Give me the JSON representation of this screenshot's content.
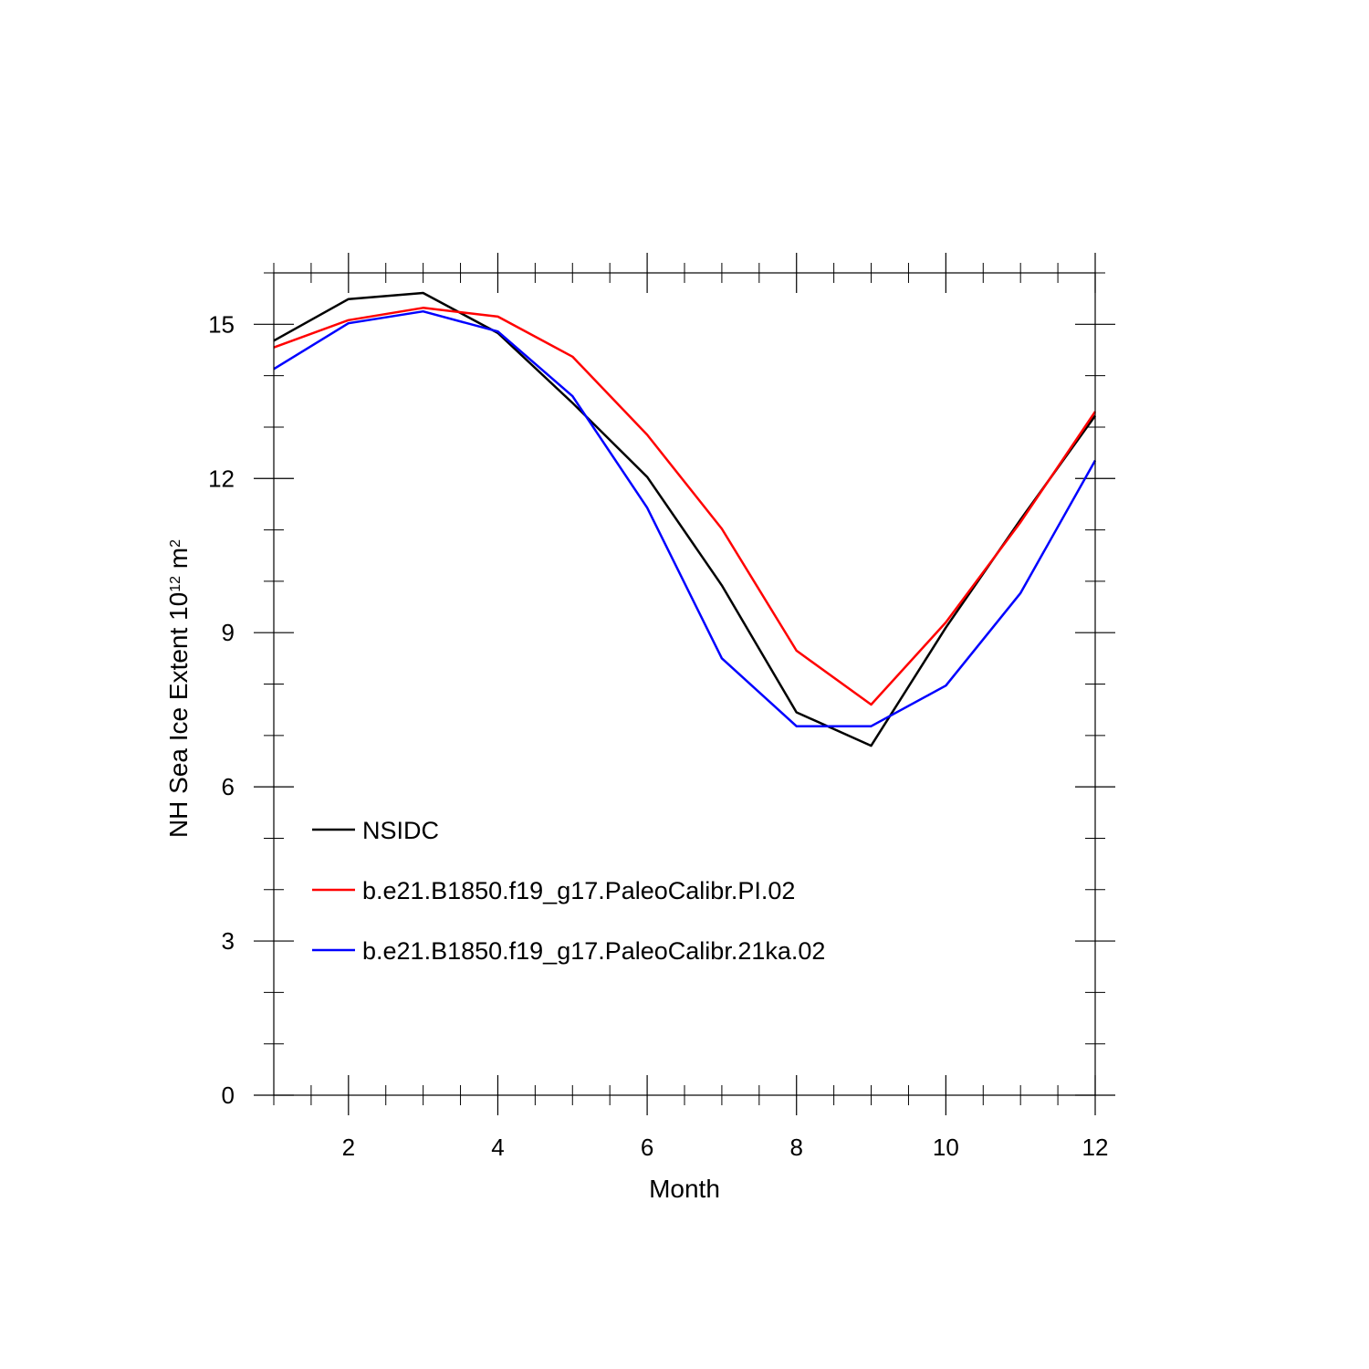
{
  "chart_data": {
    "type": "line",
    "title": "",
    "xlabel": "Month",
    "ylabel_parts": {
      "base": "NH Sea Ice Extent 10",
      "exp": "12",
      "unit": " m",
      "unit_exp": "2"
    },
    "xlim": [
      1,
      12
    ],
    "ylim": [
      0,
      16
    ],
    "x_ticks": [
      2,
      4,
      6,
      8,
      10,
      12
    ],
    "x_tick_labels": [
      "2",
      "4",
      "6",
      "8",
      "10",
      "12"
    ],
    "y_ticks": [
      0,
      3,
      6,
      9,
      12,
      15
    ],
    "y_tick_labels": [
      "0",
      "3",
      "6",
      "9",
      "12",
      "15"
    ],
    "grid": false,
    "legend_placement": "lower-left",
    "x": [
      1,
      2,
      3,
      4,
      5,
      6,
      7,
      8,
      9,
      10,
      11,
      12
    ],
    "series": [
      {
        "name": "NSIDC",
        "color": "#000000",
        "values": [
          14.68,
          15.49,
          15.61,
          14.83,
          13.47,
          12.03,
          9.92,
          7.45,
          6.8,
          9.1,
          11.2,
          13.22
        ]
      },
      {
        "name": "b.e21.B1850.f19_g17.PaleoCalibr.PI.02",
        "color": "#ff0000",
        "values": [
          14.55,
          15.08,
          15.32,
          15.15,
          14.37,
          12.85,
          11.02,
          8.65,
          7.6,
          9.2,
          11.15,
          13.3
        ]
      },
      {
        "name": "b.e21.B1850.f19_g17.PaleoCalibr.21ka.02",
        "color": "#0000ff",
        "values": [
          14.13,
          15.02,
          15.25,
          14.86,
          13.6,
          11.43,
          8.5,
          7.18,
          7.18,
          7.97,
          9.77,
          12.35
        ]
      }
    ]
  }
}
